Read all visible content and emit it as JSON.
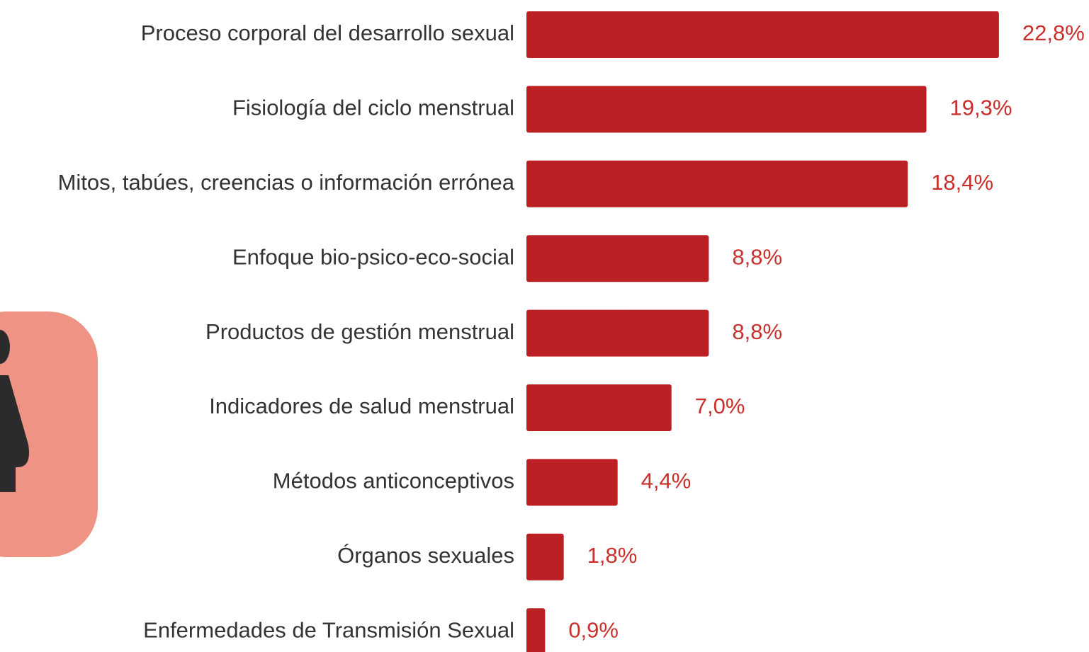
{
  "chart_data": {
    "type": "bar",
    "orientation": "horizontal",
    "color": "#bb2124",
    "label_color": "#c9302c",
    "categories": [
      "Proceso corporal del desarrollo sexual",
      "Fisiología del ciclo menstrual",
      "Mitos, tabúes, creencias o información errónea",
      "Enfoque bio-psico-eco-social",
      "Productos de gestión menstrual",
      "Indicadores de salud menstrual",
      "Métodos anticonceptivos",
      "Órganos sexuales",
      "Enfermedades de Transmisión Sexual"
    ],
    "values": [
      22.8,
      19.3,
      18.4,
      8.8,
      8.8,
      7.0,
      4.4,
      1.8,
      0.9
    ],
    "value_labels": [
      "22,8%",
      "19,3%",
      "18,4%",
      "8,8%",
      "8,8%",
      "7,0%",
      "4,4%",
      "1,8%",
      "0,9%"
    ]
  }
}
